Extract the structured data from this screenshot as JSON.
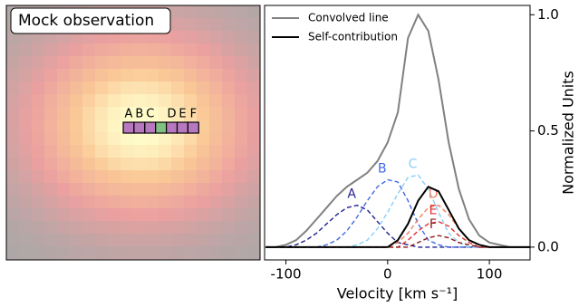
{
  "chart_data": [
    {
      "type": "image",
      "title": "Mock observation",
      "pixel_labels": [
        "A",
        "B",
        "C",
        "D",
        "E",
        "F"
      ]
    },
    {
      "type": "line",
      "xlabel": "Velocity [km s⁻¹]",
      "ylabel": "Normalized Units",
      "x": [
        -120,
        -110,
        -100,
        -90,
        -80,
        -70,
        -60,
        -50,
        -40,
        -30,
        -20,
        -10,
        0,
        10,
        20,
        30,
        40,
        50,
        60,
        70,
        80,
        90,
        100,
        110,
        120,
        130,
        140
      ],
      "xlim": [
        -121,
        140
      ],
      "xticks": [
        -100,
        0,
        100
      ],
      "ylim": [
        -0.055,
        1.04
      ],
      "yticks": [
        {
          "value": 0,
          "label": "0.0"
        },
        {
          "value": 0.5,
          "label": "0.5"
        },
        {
          "value": 1,
          "label": "1.0"
        }
      ],
      "legend": "upper left",
      "series": [
        {
          "name": "Convolved line",
          "color": "#808080",
          "style": "solid",
          "in_legend": true,
          "values": [
            0,
            0,
            0.01,
            0.03,
            0.07,
            0.12,
            0.17,
            0.22,
            0.26,
            0.29,
            0.32,
            0.37,
            0.45,
            0.58,
            0.9,
            1.0,
            0.93,
            0.72,
            0.45,
            0.25,
            0.12,
            0.05,
            0.02,
            0.01,
            0,
            0,
            0
          ]
        },
        {
          "name": "Self-contribution",
          "color": "#000000",
          "style": "solid",
          "in_legend": true,
          "values": [
            0,
            0,
            0,
            0,
            0,
            0,
            0,
            0,
            0,
            0,
            0,
            0,
            0,
            0.03,
            0.1,
            0.2,
            0.26,
            0.24,
            0.16,
            0.08,
            0.03,
            0.01,
            0,
            0,
            0,
            0,
            0
          ]
        },
        {
          "name": "A",
          "color": "#1f1f8f",
          "style": "dashed",
          "in_legend": false,
          "values": [
            0,
            0,
            0,
            0.01,
            0.03,
            0.06,
            0.1,
            0.14,
            0.17,
            0.18,
            0.16,
            0.11,
            0.06,
            0.02,
            0.01,
            0,
            0,
            0,
            0,
            0,
            0,
            0,
            0,
            0,
            0,
            0,
            0
          ]
        },
        {
          "name": "B",
          "color": "#4169e1",
          "style": "dashed",
          "in_legend": false,
          "values": [
            0,
            0,
            0,
            0,
            0,
            0,
            0.01,
            0.03,
            0.07,
            0.13,
            0.2,
            0.26,
            0.29,
            0.28,
            0.2,
            0.1,
            0.03,
            0.01,
            0,
            0,
            0,
            0,
            0,
            0,
            0,
            0,
            0
          ]
        },
        {
          "name": "C",
          "color": "#87cefa",
          "style": "dashed",
          "in_legend": false,
          "values": [
            0,
            0,
            0,
            0,
            0,
            0,
            0,
            0,
            0,
            0.01,
            0.03,
            0.08,
            0.15,
            0.23,
            0.3,
            0.31,
            0.25,
            0.15,
            0.06,
            0.02,
            0,
            0,
            0,
            0,
            0,
            0,
            0
          ]
        },
        {
          "name": "D",
          "color": "#f08060",
          "style": "dashed",
          "in_legend": false,
          "values": [
            0,
            0,
            0,
            0,
            0,
            0,
            0,
            0,
            0,
            0,
            0,
            0,
            0,
            0.02,
            0.06,
            0.12,
            0.17,
            0.18,
            0.14,
            0.08,
            0.03,
            0.01,
            0,
            0,
            0,
            0,
            0
          ]
        },
        {
          "name": "E",
          "color": "#e03030",
          "style": "dashed",
          "in_legend": false,
          "values": [
            0,
            0,
            0,
            0,
            0,
            0,
            0,
            0,
            0,
            0,
            0,
            0,
            0,
            0,
            0.03,
            0.07,
            0.1,
            0.11,
            0.09,
            0.05,
            0.02,
            0,
            0,
            0,
            0,
            0,
            0
          ]
        },
        {
          "name": "F",
          "color": "#8b1a1a",
          "style": "dashed",
          "in_legend": false,
          "values": [
            0,
            0,
            0,
            0,
            0,
            0,
            0,
            0,
            0,
            0,
            0,
            0,
            0,
            0,
            0,
            0.02,
            0.04,
            0.05,
            0.04,
            0.02,
            0.01,
            0,
            0,
            0,
            0,
            0,
            0
          ]
        }
      ]
    }
  ]
}
